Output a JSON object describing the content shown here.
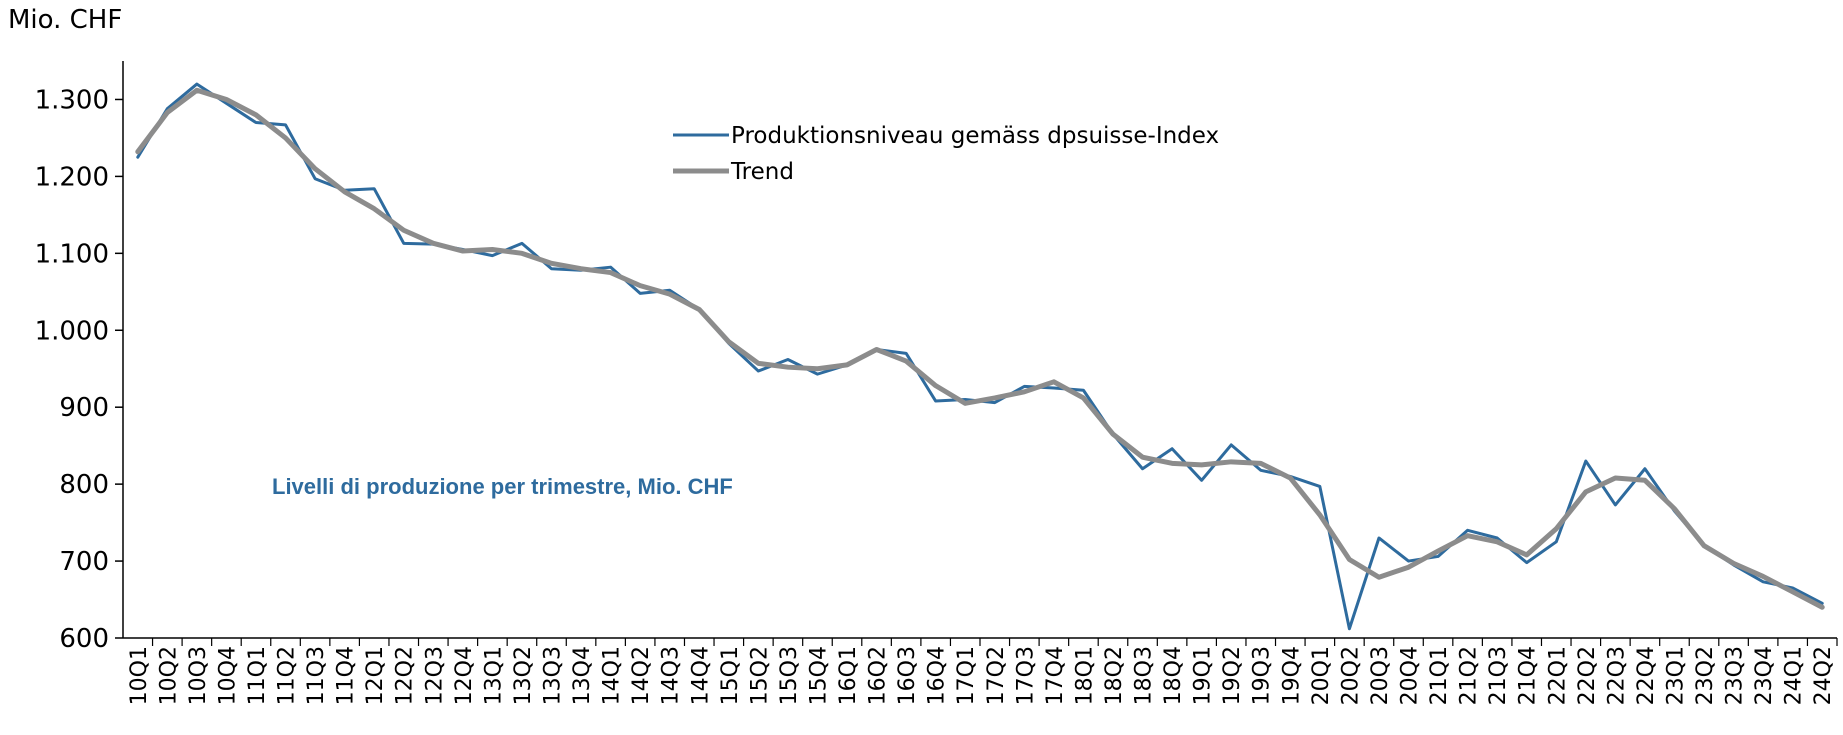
{
  "chart_data": {
    "type": "line",
    "y_axis_label": "Mio. CHF",
    "annotation": "Livelli di produzione per trimestre, Mio. CHF",
    "categories": [
      "10Q1",
      "10Q2",
      "10Q3",
      "10Q4",
      "11Q1",
      "11Q2",
      "11Q3",
      "11Q4",
      "12Q1",
      "12Q2",
      "12Q3",
      "12Q4",
      "13Q1",
      "13Q2",
      "13Q3",
      "13Q4",
      "14Q1",
      "14Q2",
      "14Q3",
      "14Q4",
      "15Q1",
      "15Q2",
      "15Q3",
      "15Q4",
      "16Q1",
      "16Q2",
      "16Q3",
      "16Q4",
      "17Q1",
      "17Q2",
      "17Q3",
      "17Q4",
      "18Q1",
      "18Q2",
      "18Q3",
      "18Q4",
      "19Q1",
      "19Q2",
      "19Q3",
      "19Q4",
      "20Q1",
      "20Q2",
      "20Q3",
      "20Q4",
      "21Q1",
      "21Q2",
      "21Q3",
      "21Q4",
      "22Q1",
      "22Q2",
      "22Q3",
      "22Q4",
      "23Q1",
      "23Q2",
      "23Q3",
      "23Q4",
      "24Q1",
      "24Q2"
    ],
    "series": [
      {
        "name": "Produktionsniveau gemäss dpsuisse-Index",
        "color": "#2e6b9e",
        "width": 3,
        "values": [
          1225,
          1288,
          1320,
          1295,
          1270,
          1267,
          1197,
          1182,
          1184,
          1113,
          1112,
          1105,
          1097,
          1113,
          1080,
          1078,
          1082,
          1048,
          1052,
          1027,
          983,
          947,
          962,
          943,
          955,
          975,
          970,
          908,
          910,
          906,
          927,
          925,
          922,
          865,
          820,
          846,
          805,
          851,
          818,
          810,
          797,
          612,
          730,
          700,
          706,
          740,
          730,
          698,
          725,
          830,
          773,
          820,
          765,
          720,
          695,
          673,
          665,
          645
        ]
      },
      {
        "name": "Trend",
        "color": "#8c8c8c",
        "width": 5,
        "values": [
          1232,
          1283,
          1312,
          1300,
          1280,
          1250,
          1210,
          1180,
          1158,
          1130,
          1113,
          1103,
          1105,
          1100,
          1087,
          1080,
          1075,
          1058,
          1047,
          1027,
          985,
          957,
          952,
          950,
          955,
          975,
          960,
          928,
          905,
          912,
          920,
          933,
          912,
          865,
          835,
          827,
          825,
          829,
          827,
          808,
          760,
          702,
          679,
          692,
          713,
          733,
          725,
          708,
          742,
          790,
          808,
          805,
          768,
          720,
          697,
          680,
          660,
          640
        ]
      }
    ],
    "ylim": [
      600,
      1350
    ],
    "yticks": [
      {
        "value": 1300,
        "label": "1.300"
      },
      {
        "value": 1200,
        "label": "1.200"
      },
      {
        "value": 1100,
        "label": "1.100"
      },
      {
        "value": 1000,
        "label": "1.000"
      },
      900,
      800,
      700,
      600
    ],
    "grid": false,
    "legend": "top"
  }
}
